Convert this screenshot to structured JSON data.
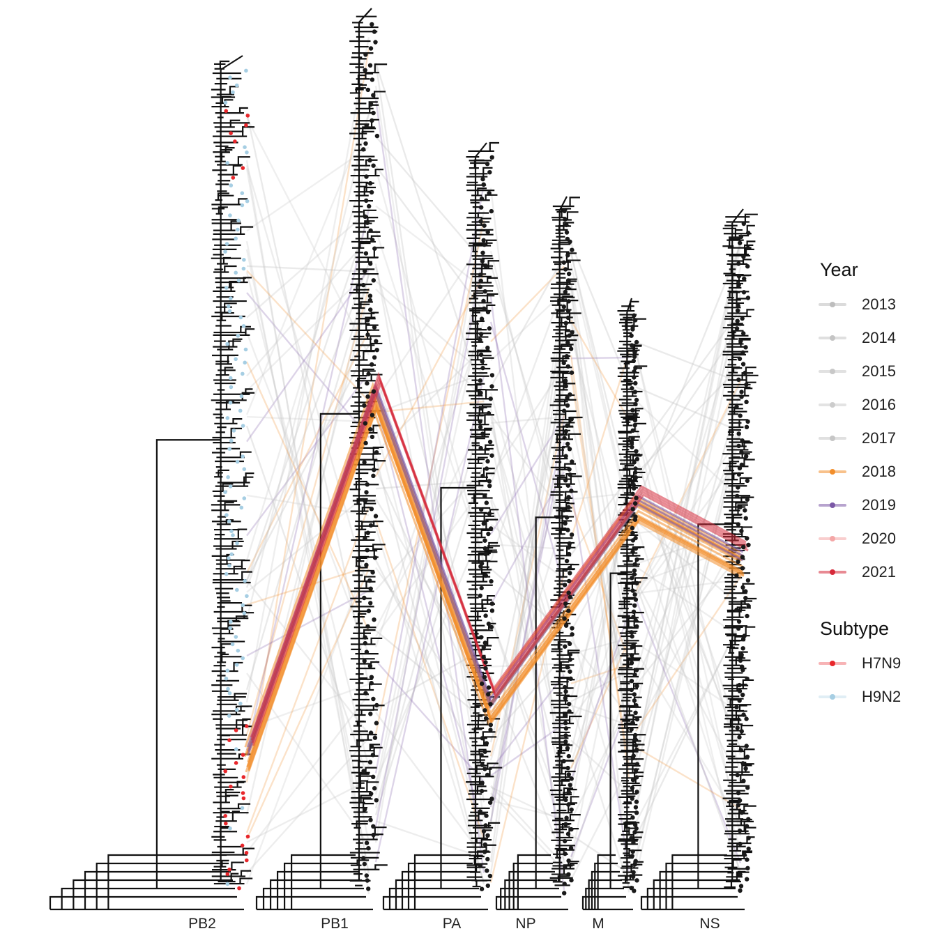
{
  "segments": [
    {
      "id": "pb2",
      "label": "PB2"
    },
    {
      "id": "pb1",
      "label": "PB1"
    },
    {
      "id": "pa",
      "label": "PA"
    },
    {
      "id": "np",
      "label": "NP"
    },
    {
      "id": "m",
      "label": "M"
    },
    {
      "id": "ns",
      "label": "NS"
    }
  ],
  "legend": {
    "year": {
      "title": "Year",
      "items": [
        {
          "label": "2013",
          "color": "#bdbdbd"
        },
        {
          "label": "2014",
          "color": "#c4c4c4"
        },
        {
          "label": "2015",
          "color": "#c8c8c8"
        },
        {
          "label": "2016",
          "color": "#cccccc"
        },
        {
          "label": "2017",
          "color": "#c6c6c6"
        },
        {
          "label": "2018",
          "color": "#f28e2b"
        },
        {
          "label": "2019",
          "color": "#7b58a6"
        },
        {
          "label": "2020",
          "color": "#f4a6a6"
        },
        {
          "label": "2021",
          "color": "#d62a3a"
        }
      ]
    },
    "subtype": {
      "title": "Subtype",
      "items": [
        {
          "label": "H7N9",
          "color": "#e8262b"
        },
        {
          "label": "H9N2",
          "color": "#a6cee3"
        }
      ]
    }
  }
}
